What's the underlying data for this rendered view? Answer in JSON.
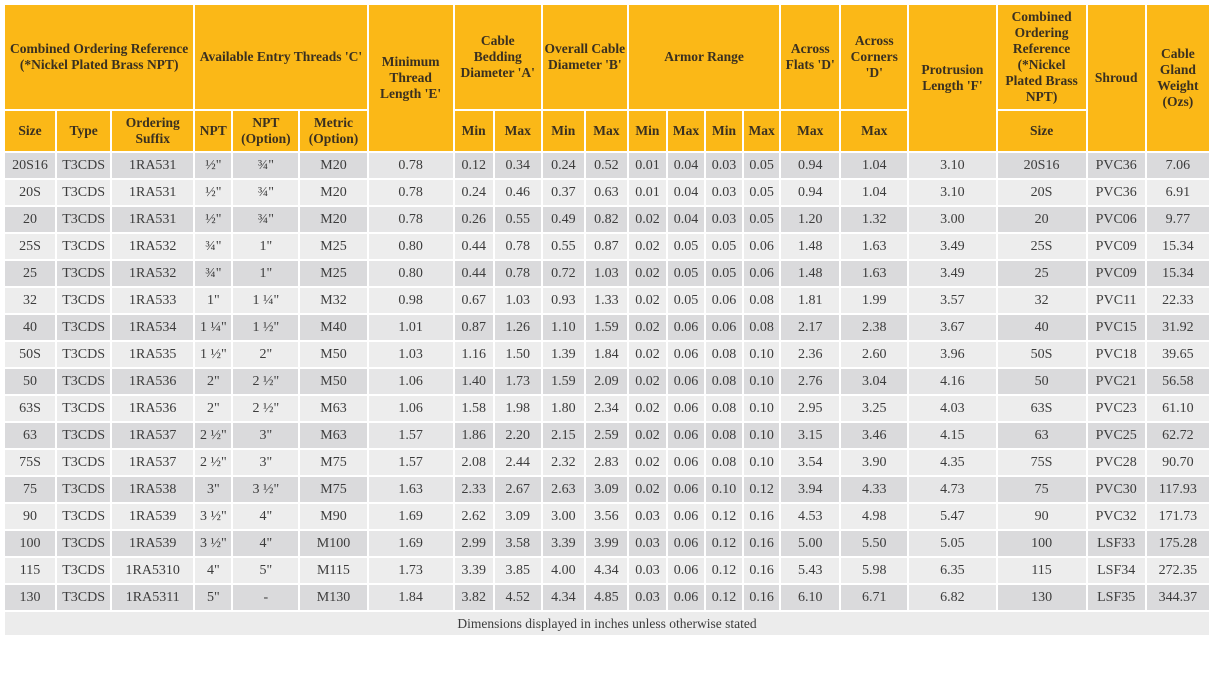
{
  "colors": {
    "header": "#fbb817",
    "row_dark": "#dadadc",
    "row_light": "#ededed"
  },
  "header": {
    "combined_ordering": "Combined Ordering Reference (*Nickel Plated Brass NPT)",
    "entry_threads": "Available Entry Threads 'C'",
    "min_thread": "Minimum Thread Length 'E'",
    "cable_bedding": "Cable Bedding Diameter 'A'",
    "overall_cable": "Overall Cable Diameter 'B'",
    "armor_range": "Armor Range",
    "across_flats": "Across Flats 'D'",
    "across_corners": "Across Corners 'D'",
    "protrusion": "Protrusion Length 'F'",
    "combined_ordering_2": "Combined Ordering Reference (*Nickel Plated Brass NPT)",
    "shroud": "Shroud",
    "weight": "Cable Gland Weight (Ozs)",
    "sub": {
      "size": "Size",
      "type": "Type",
      "suffix": "Ordering Suffix",
      "npt": "NPT",
      "npt_option": "NPT (Option)",
      "metric_option": "Metric (Option)",
      "min": "Min",
      "max": "Max",
      "size2": "Size"
    }
  },
  "rows": [
    [
      "20S16",
      "T3CDS",
      "1RA531",
      "½\"",
      "¾\"",
      "M20",
      "0.78",
      "0.12",
      "0.34",
      "0.24",
      "0.52",
      "0.01",
      "0.04",
      "0.03",
      "0.05",
      "0.94",
      "1.04",
      "3.10",
      "20S16",
      "PVC36",
      "7.06"
    ],
    [
      "20S",
      "T3CDS",
      "1RA531",
      "½\"",
      "¾\"",
      "M20",
      "0.78",
      "0.24",
      "0.46",
      "0.37",
      "0.63",
      "0.01",
      "0.04",
      "0.03",
      "0.05",
      "0.94",
      "1.04",
      "3.10",
      "20S",
      "PVC36",
      "6.91"
    ],
    [
      "20",
      "T3CDS",
      "1RA531",
      "½\"",
      "¾\"",
      "M20",
      "0.78",
      "0.26",
      "0.55",
      "0.49",
      "0.82",
      "0.02",
      "0.04",
      "0.03",
      "0.05",
      "1.20",
      "1.32",
      "3.00",
      "20",
      "PVC06",
      "9.77"
    ],
    [
      "25S",
      "T3CDS",
      "1RA532",
      "¾\"",
      "1\"",
      "M25",
      "0.80",
      "0.44",
      "0.78",
      "0.55",
      "0.87",
      "0.02",
      "0.05",
      "0.05",
      "0.06",
      "1.48",
      "1.63",
      "3.49",
      "25S",
      "PVC09",
      "15.34"
    ],
    [
      "25",
      "T3CDS",
      "1RA532",
      "¾\"",
      "1\"",
      "M25",
      "0.80",
      "0.44",
      "0.78",
      "0.72",
      "1.03",
      "0.02",
      "0.05",
      "0.05",
      "0.06",
      "1.48",
      "1.63",
      "3.49",
      "25",
      "PVC09",
      "15.34"
    ],
    [
      "32",
      "T3CDS",
      "1RA533",
      "1\"",
      "1 ¼\"",
      "M32",
      "0.98",
      "0.67",
      "1.03",
      "0.93",
      "1.33",
      "0.02",
      "0.05",
      "0.06",
      "0.08",
      "1.81",
      "1.99",
      "3.57",
      "32",
      "PVC11",
      "22.33"
    ],
    [
      "40",
      "T3CDS",
      "1RA534",
      "1 ¼\"",
      "1 ½\"",
      "M40",
      "1.01",
      "0.87",
      "1.26",
      "1.10",
      "1.59",
      "0.02",
      "0.06",
      "0.06",
      "0.08",
      "2.17",
      "2.38",
      "3.67",
      "40",
      "PVC15",
      "31.92"
    ],
    [
      "50S",
      "T3CDS",
      "1RA535",
      "1 ½\"",
      "2\"",
      "M50",
      "1.03",
      "1.16",
      "1.50",
      "1.39",
      "1.84",
      "0.02",
      "0.06",
      "0.08",
      "0.10",
      "2.36",
      "2.60",
      "3.96",
      "50S",
      "PVC18",
      "39.65"
    ],
    [
      "50",
      "T3CDS",
      "1RA536",
      "2\"",
      "2 ½\"",
      "M50",
      "1.06",
      "1.40",
      "1.73",
      "1.59",
      "2.09",
      "0.02",
      "0.06",
      "0.08",
      "0.10",
      "2.76",
      "3.04",
      "4.16",
      "50",
      "PVC21",
      "56.58"
    ],
    [
      "63S",
      "T3CDS",
      "1RA536",
      "2\"",
      "2 ½\"",
      "M63",
      "1.06",
      "1.58",
      "1.98",
      "1.80",
      "2.34",
      "0.02",
      "0.06",
      "0.08",
      "0.10",
      "2.95",
      "3.25",
      "4.03",
      "63S",
      "PVC23",
      "61.10"
    ],
    [
      "63",
      "T3CDS",
      "1RA537",
      "2 ½\"",
      "3\"",
      "M63",
      "1.57",
      "1.86",
      "2.20",
      "2.15",
      "2.59",
      "0.02",
      "0.06",
      "0.08",
      "0.10",
      "3.15",
      "3.46",
      "4.15",
      "63",
      "PVC25",
      "62.72"
    ],
    [
      "75S",
      "T3CDS",
      "1RA537",
      "2 ½\"",
      "3\"",
      "M75",
      "1.57",
      "2.08",
      "2.44",
      "2.32",
      "2.83",
      "0.02",
      "0.06",
      "0.08",
      "0.10",
      "3.54",
      "3.90",
      "4.35",
      "75S",
      "PVC28",
      "90.70"
    ],
    [
      "75",
      "T3CDS",
      "1RA538",
      "3\"",
      "3 ½\"",
      "M75",
      "1.63",
      "2.33",
      "2.67",
      "2.63",
      "3.09",
      "0.02",
      "0.06",
      "0.10",
      "0.12",
      "3.94",
      "4.33",
      "4.73",
      "75",
      "PVC30",
      "117.93"
    ],
    [
      "90",
      "T3CDS",
      "1RA539",
      "3 ½\"",
      "4\"",
      "M90",
      "1.69",
      "2.62",
      "3.09",
      "3.00",
      "3.56",
      "0.03",
      "0.06",
      "0.12",
      "0.16",
      "4.53",
      "4.98",
      "5.47",
      "90",
      "PVC32",
      "171.73"
    ],
    [
      "100",
      "T3CDS",
      "1RA539",
      "3 ½\"",
      "4\"",
      "M100",
      "1.69",
      "2.99",
      "3.58",
      "3.39",
      "3.99",
      "0.03",
      "0.06",
      "0.12",
      "0.16",
      "5.00",
      "5.50",
      "5.05",
      "100",
      "LSF33",
      "175.28"
    ],
    [
      "115",
      "T3CDS",
      "1RA5310",
      "4\"",
      "5\"",
      "M115",
      "1.73",
      "3.39",
      "3.85",
      "4.00",
      "4.34",
      "0.03",
      "0.06",
      "0.12",
      "0.16",
      "5.43",
      "5.98",
      "6.35",
      "115",
      "LSF34",
      "272.35"
    ],
    [
      "130",
      "T3CDS",
      "1RA5311",
      "5\"",
      "-",
      "M130",
      "1.84",
      "3.82",
      "4.52",
      "4.34",
      "4.85",
      "0.03",
      "0.06",
      "0.12",
      "0.16",
      "6.10",
      "6.71",
      "6.82",
      "130",
      "LSF35",
      "344.37"
    ]
  ],
  "footer": "Dimensions displayed in inches unless otherwise stated"
}
